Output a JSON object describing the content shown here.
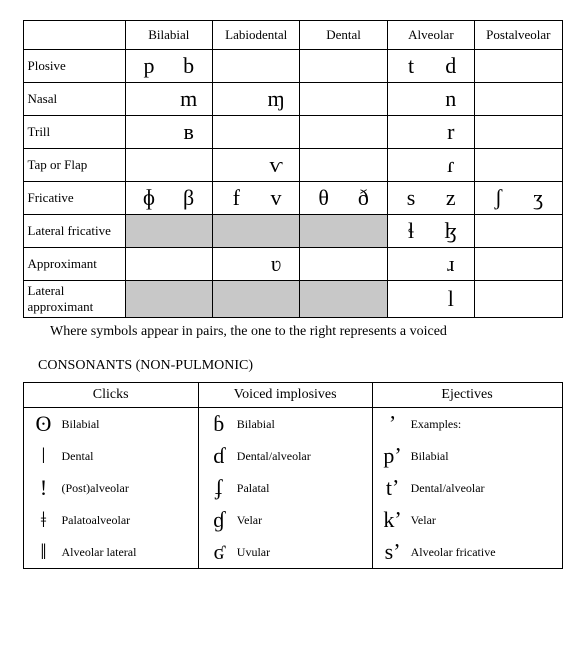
{
  "pulmonic": {
    "columns": [
      "Bilabial",
      "Labiodental",
      "Dental",
      "Alveolar",
      "Postalveolar"
    ],
    "rows": [
      {
        "label": "Plosive",
        "cells": [
          [
            "p",
            "b"
          ],
          [
            "",
            ""
          ],
          [
            "",
            ""
          ],
          [
            "t",
            "d"
          ],
          [
            "",
            ""
          ]
        ],
        "grey": []
      },
      {
        "label": "Nasal",
        "cells": [
          [
            "",
            "m"
          ],
          [
            "",
            "ɱ"
          ],
          [
            "",
            ""
          ],
          [
            "",
            "n"
          ],
          [
            "",
            ""
          ]
        ],
        "grey": []
      },
      {
        "label": "Trill",
        "cells": [
          [
            "",
            "ʙ"
          ],
          [
            "",
            ""
          ],
          [
            "",
            ""
          ],
          [
            "",
            "r"
          ],
          [
            "",
            ""
          ]
        ],
        "grey": []
      },
      {
        "label": "Tap or Flap",
        "cells": [
          [
            "",
            ""
          ],
          [
            "",
            "ⱱ"
          ],
          [
            "",
            ""
          ],
          [
            "",
            "ɾ"
          ],
          [
            "",
            ""
          ]
        ],
        "grey": []
      },
      {
        "label": "Fricative",
        "cells": [
          [
            "ɸ",
            "β"
          ],
          [
            "f",
            "v"
          ],
          [
            "θ",
            "ð"
          ],
          [
            "s",
            "z"
          ],
          [
            "ʃ",
            "ʒ"
          ]
        ],
        "grey": []
      },
      {
        "label": "Lateral fricative",
        "cells": [
          [
            "",
            ""
          ],
          [
            "",
            ""
          ],
          [
            "",
            ""
          ],
          [
            "ɬ",
            "ɮ"
          ],
          [
            "",
            ""
          ]
        ],
        "grey": [
          0,
          1,
          2
        ]
      },
      {
        "label": "Approximant",
        "cells": [
          [
            "",
            ""
          ],
          [
            "",
            "ʋ"
          ],
          [
            "",
            ""
          ],
          [
            "",
            "ɹ"
          ],
          [
            "",
            ""
          ]
        ],
        "grey": []
      },
      {
        "label": "Lateral approximant",
        "cells": [
          [
            "",
            ""
          ],
          [
            "",
            ""
          ],
          [
            "",
            ""
          ],
          [
            "",
            "l"
          ],
          [
            "",
            ""
          ]
        ],
        "grey": [
          0,
          1,
          2
        ]
      }
    ]
  },
  "caption": "Where symbols appear in pairs, the one to the right represents a voiced",
  "section_title": "CONSONANTS (NON-PULMONIC)",
  "nonpulmonic": {
    "headers": [
      "Clicks",
      "Voiced implosives",
      "Ejectives"
    ],
    "rows": [
      [
        [
          "ʘ",
          "Bilabial"
        ],
        [
          "ɓ",
          "Bilabial"
        ],
        [
          "ʼ",
          "Examples:"
        ]
      ],
      [
        [
          "ǀ",
          "Dental"
        ],
        [
          "ɗ",
          "Dental/alveolar"
        ],
        [
          "pʼ",
          "Bilabial"
        ]
      ],
      [
        [
          "ǃ",
          "(Post)alveolar"
        ],
        [
          "ʄ",
          "Palatal"
        ],
        [
          "tʼ",
          "Dental/alveolar"
        ]
      ],
      [
        [
          "ǂ",
          "Palatoalveolar"
        ],
        [
          "ɠ",
          "Velar"
        ],
        [
          "kʼ",
          "Velar"
        ]
      ],
      [
        [
          "ǁ",
          "Alveolar lateral"
        ],
        [
          "ʛ",
          "Uvular"
        ],
        [
          "sʼ",
          "Alveolar fricative"
        ]
      ]
    ]
  }
}
